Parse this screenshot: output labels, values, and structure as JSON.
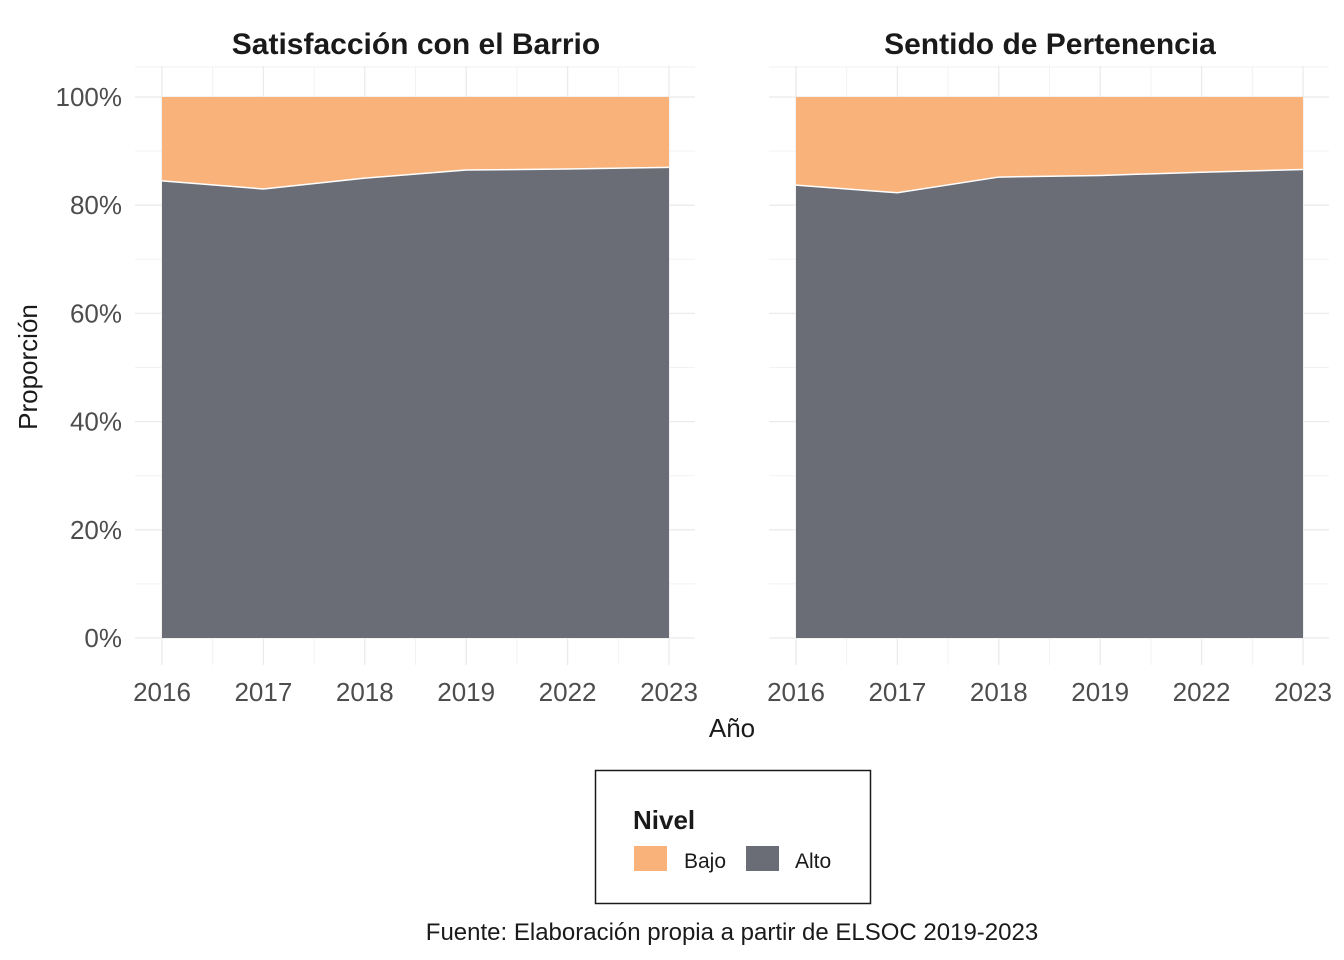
{
  "chart_data": [
    {
      "type": "area",
      "stacked": true,
      "percent": true,
      "title": "Satisfacción con el Barrio",
      "categories": [
        "2016",
        "2017",
        "2018",
        "2019",
        "2022",
        "2023"
      ],
      "series": [
        {
          "name": "Alto",
          "values": [
            84.5,
            83.0,
            85.0,
            86.5,
            86.7,
            87.0
          ],
          "color": "#6b6d76"
        },
        {
          "name": "Bajo",
          "values": [
            15.5,
            17.0,
            15.0,
            13.5,
            13.3,
            13.0
          ],
          "color": "#f9b27a"
        }
      ],
      "ylim": [
        0,
        100
      ]
    },
    {
      "type": "area",
      "stacked": true,
      "percent": true,
      "title": "Sentido de Pertenencia",
      "categories": [
        "2016",
        "2017",
        "2018",
        "2019",
        "2022",
        "2023"
      ],
      "series": [
        {
          "name": "Alto",
          "values": [
            83.7,
            82.3,
            85.2,
            85.5,
            86.1,
            86.6
          ],
          "color": "#6b6d76"
        },
        {
          "name": "Bajo",
          "values": [
            16.3,
            17.7,
            14.8,
            14.5,
            13.9,
            13.4
          ],
          "color": "#f9b27a"
        }
      ],
      "ylim": [
        0,
        100
      ]
    }
  ],
  "y_ticks": [
    "0%",
    "20%",
    "40%",
    "60%",
    "80%",
    "100%"
  ],
  "xlabel": "Año",
  "ylabel": "Proporción",
  "grid": true,
  "legend": {
    "title": "Nivel",
    "position": "bottom",
    "items": [
      {
        "label": "Bajo",
        "color": "#f9b27a"
      },
      {
        "label": "Alto",
        "color": "#6b6d76"
      }
    ]
  },
  "caption": "Fuente: Elaboración propia a partir de ELSOC 2019-2023"
}
